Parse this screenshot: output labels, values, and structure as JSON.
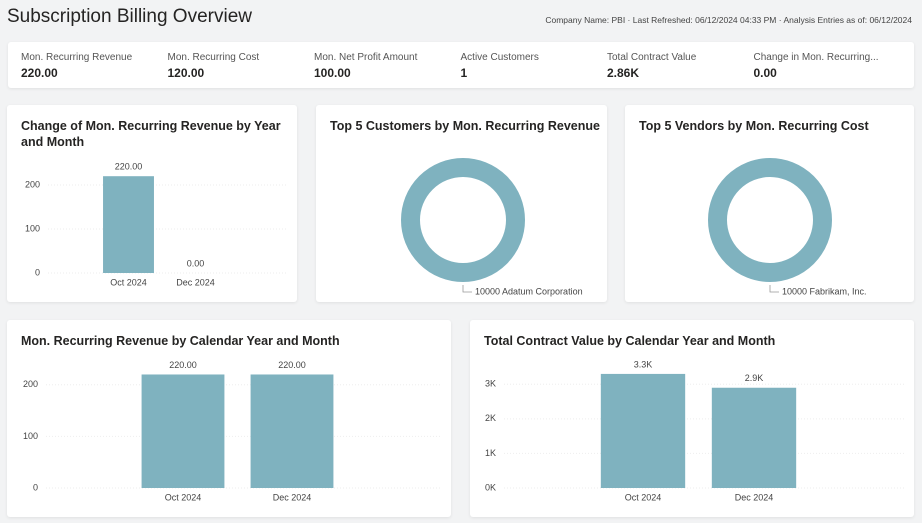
{
  "header": {
    "title": "Subscription Billing Overview",
    "info": "Company Name: PBI · Last Refreshed: 06/12/2024 04:33 PM · Analysis Entries as of: 06/12/2024"
  },
  "kpis": [
    {
      "label": "Mon. Recurring Revenue",
      "value": "220.00"
    },
    {
      "label": "Mon. Recurring Cost",
      "value": "120.00"
    },
    {
      "label": "Mon. Net Profit Amount",
      "value": "100.00"
    },
    {
      "label": "Active Customers",
      "value": "1"
    },
    {
      "label": "Total Contract Value",
      "value": "2.86K"
    },
    {
      "label": "Change in Mon. Recurring...",
      "value": "0.00"
    }
  ],
  "chart_data": [
    {
      "type": "bar",
      "title": "Change of Mon. Recurring Revenue by Year and Month",
      "categories": [
        "Oct 2024",
        "Dec 2024"
      ],
      "values": [
        220,
        0
      ],
      "value_labels": [
        "220.00",
        "0.00"
      ],
      "color": "#7fb2bf",
      "ylim": [
        0,
        250
      ],
      "yticks": [
        0,
        100,
        200
      ],
      "grid": true
    },
    {
      "type": "donut",
      "title": "Top 5 Customers by Mon. Recurring Revenue",
      "categories": [
        "10000 Adatum Corporation"
      ],
      "values": [
        220
      ],
      "color": "#7fb2bf"
    },
    {
      "type": "donut",
      "title": "Top 5 Vendors by Mon. Recurring Cost",
      "categories": [
        "10000 Fabrikam, Inc."
      ],
      "values": [
        120
      ],
      "color": "#7fb2bf"
    },
    {
      "type": "bar",
      "title": "Mon. Recurring Revenue by Calendar Year and Month",
      "categories": [
        "Oct 2024",
        "Dec 2024"
      ],
      "values": [
        220,
        220
      ],
      "value_labels": [
        "220.00",
        "220.00"
      ],
      "color": "#7fb2bf",
      "ylim": [
        0,
        250
      ],
      "yticks": [
        0,
        100,
        200
      ],
      "grid": true
    },
    {
      "type": "bar",
      "title": "Total Contract Value by Calendar Year and Month",
      "categories": [
        "Oct 2024",
        "Dec 2024"
      ],
      "values": [
        3300,
        2900
      ],
      "value_labels": [
        "3.3K",
        "2.9K"
      ],
      "color": "#7fb2bf",
      "ylim": [
        0,
        3500
      ],
      "yticks": [
        {
          "value": 0,
          "label": "0K"
        },
        {
          "value": 1000,
          "label": "1K"
        },
        {
          "value": 2000,
          "label": "2K"
        },
        {
          "value": 3000,
          "label": "3K"
        }
      ],
      "grid": true
    }
  ]
}
